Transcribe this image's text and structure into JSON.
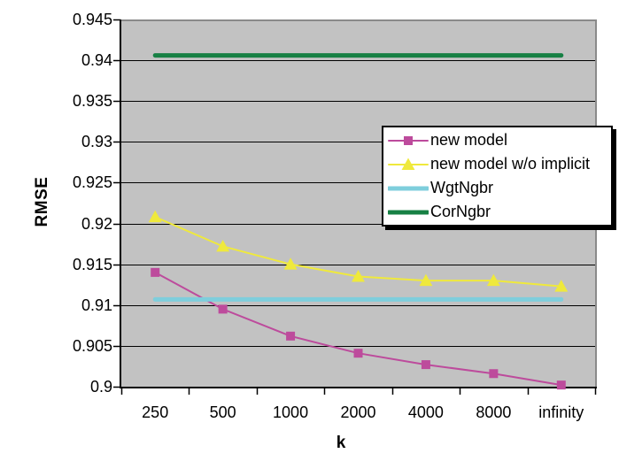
{
  "chart_data": {
    "type": "line",
    "title": "",
    "xlabel": "k",
    "ylabel": "RMSE",
    "categories": [
      "250",
      "500",
      "1000",
      "2000",
      "4000",
      "8000",
      "infinity"
    ],
    "series": [
      {
        "name": "new model",
        "color": "#BD4B9C",
        "marker": "square",
        "line_width": 2,
        "values": [
          0.914,
          0.9095,
          0.9062,
          0.9041,
          0.9027,
          0.9016,
          0.9002
        ]
      },
      {
        "name": "new model w/o implicit",
        "color": "#EFE93C",
        "marker": "triangle",
        "line_width": 2,
        "values": [
          0.9208,
          0.9172,
          0.915,
          0.9135,
          0.913,
          0.913,
          0.9123
        ]
      },
      {
        "name": "WgtNgbr",
        "color": "#7ECEDC",
        "marker": "none",
        "line_width": 5,
        "values": [
          0.9107,
          0.9107,
          0.9107,
          0.9107,
          0.9107,
          0.9107,
          0.9107
        ]
      },
      {
        "name": "CorNgbr",
        "color": "#178044",
        "marker": "none",
        "line_width": 5,
        "values": [
          0.9406,
          0.9406,
          0.9406,
          0.9406,
          0.9406,
          0.9406,
          0.9406
        ]
      }
    ],
    "ylim": [
      0.9,
      0.945
    ],
    "ytick_step": 0.005,
    "ytick_labels": [
      "0.9",
      "0.905",
      "0.91",
      "0.915",
      "0.92",
      "0.925",
      "0.93",
      "0.935",
      "0.94",
      "0.945"
    ],
    "grid": true,
    "legend_position": "inside-right",
    "colors": {
      "plot_bg": "#C2C2C2",
      "grid": "#000000",
      "axis": "#000000",
      "plot_border_gray": "#8A8A8A",
      "legend_bg": "#FFFFFF",
      "legend_border": "#000000"
    }
  }
}
